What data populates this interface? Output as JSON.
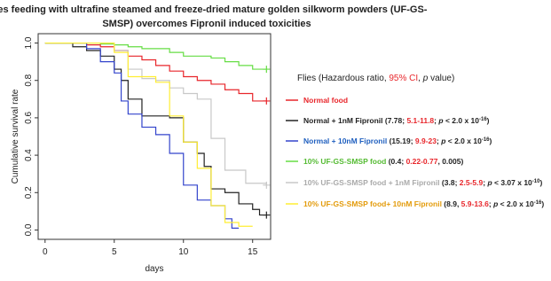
{
  "chart_data": {
    "type": "step",
    "title": [
      "Files feeding with ultrafine steamed and freeze-dried mature golden silkworm powders (UF-GS-",
      "SMSP) overcomes Fipronil induced toxicities"
    ],
    "xlabel": "days",
    "ylabel": "Cumulative survival rate",
    "xlim": [
      -0.5,
      16.3
    ],
    "xticks": [
      0,
      5,
      10,
      15
    ],
    "ylim": [
      -0.05,
      1.05
    ],
    "yticks": [
      {
        "value": 0,
        "label": "0.0"
      },
      0.2,
      0.4,
      0.6,
      0.8,
      {
        "value": 1,
        "label": "1.0"
      }
    ],
    "legend_title": [
      {
        "text": "Flies (Hazardous ratio, "
      },
      {
        "text": "95% CI",
        "color": "#e8262b"
      },
      {
        "text": ", "
      },
      {
        "text": "p",
        "italic": true
      },
      {
        "text": " value)"
      }
    ],
    "series": [
      {
        "name": "Normal food",
        "color": "#e8262b",
        "label_color": "#e8262b",
        "censored": true,
        "stats": [],
        "x": [
          0,
          3,
          4,
          5,
          6,
          7,
          8,
          9,
          10,
          11,
          12,
          13,
          14,
          15,
          16
        ],
        "values": [
          1,
          0.99,
          0.98,
          0.96,
          0.93,
          0.91,
          0.88,
          0.85,
          0.82,
          0.8,
          0.78,
          0.75,
          0.73,
          0.69,
          0.69
        ]
      },
      {
        "name": "Normal + 1nM Fipronil",
        "color": "#222222",
        "label_color": "#222222",
        "censored": true,
        "stats": [
          {
            "text": " (7.78; "
          },
          {
            "text": "5.1-11.8",
            "color": "#e8262b"
          },
          {
            "text": "; "
          },
          {
            "text": "p",
            "italic": true
          },
          {
            "text": " < 2.0 x 10"
          },
          {
            "text": "-16",
            "super": true
          },
          {
            "text": ")"
          }
        ],
        "x": [
          0,
          2,
          3,
          4,
          5,
          5.5,
          6,
          7,
          9,
          10,
          11,
          11.5,
          12,
          13,
          14,
          15,
          15.5,
          16
        ],
        "values": [
          1,
          0.98,
          0.96,
          0.93,
          0.86,
          0.8,
          0.7,
          0.61,
          0.6,
          0.47,
          0.41,
          0.34,
          0.22,
          0.2,
          0.14,
          0.11,
          0.08,
          0.08
        ]
      },
      {
        "name": "Normal + 10nM Fipronil",
        "color": "#3344cc",
        "label_color": "#1f5fbf",
        "censored": false,
        "stats": [
          {
            "text": " (15.19; "
          },
          {
            "text": "9.9-23",
            "color": "#e8262b"
          },
          {
            "text": "; "
          },
          {
            "text": "p",
            "italic": true
          },
          {
            "text": " < 2.0 x 10"
          },
          {
            "text": "-16",
            "super": true
          },
          {
            "text": ")"
          }
        ],
        "x": [
          0,
          3,
          4,
          5,
          5.5,
          6,
          7,
          8,
          9,
          10,
          11,
          12,
          13,
          13.5,
          14
        ],
        "values": [
          1,
          0.97,
          0.9,
          0.84,
          0.69,
          0.62,
          0.55,
          0.51,
          0.41,
          0.24,
          0.16,
          0.13,
          0.06,
          0.01,
          0.01
        ]
      },
      {
        "name": "10% UF-GS-SMSP food",
        "color": "#66dd44",
        "label_color": "#55bb33",
        "censored": true,
        "stats": [
          {
            "text": " (0.4; "
          },
          {
            "text": "0.22-0.77",
            "color": "#e8262b"
          },
          {
            "text": ", 0.005)"
          }
        ],
        "x": [
          0,
          4,
          5,
          6,
          7,
          9,
          10,
          12,
          13,
          14,
          15,
          16
        ],
        "values": [
          1,
          0.995,
          0.99,
          0.98,
          0.97,
          0.95,
          0.93,
          0.92,
          0.9,
          0.88,
          0.86,
          0.86
        ]
      },
      {
        "name": "10% UF-GS-SMSP food + 1nM Fipronil",
        "color": "#c8c8c8",
        "label_color": "#aaaaaa",
        "censored": true,
        "stats": [
          {
            "text": " (3.8; "
          },
          {
            "text": "2.5-5.9",
            "color": "#e8262b"
          },
          {
            "text": "; "
          },
          {
            "text": "p",
            "italic": true
          },
          {
            "text": " < 3.07 x 10"
          },
          {
            "text": "-10",
            "super": true
          },
          {
            "text": ")"
          }
        ],
        "x": [
          0,
          5,
          6,
          7,
          8,
          9,
          10,
          11,
          12,
          13,
          14.5,
          16
        ],
        "values": [
          1,
          0.96,
          0.86,
          0.81,
          0.8,
          0.76,
          0.73,
          0.7,
          0.49,
          0.32,
          0.25,
          0.24
        ]
      },
      {
        "name": "10% UF-GS-SMSP food+ 10nM Fipronil",
        "color": "#ffee33",
        "label_color": "#e39b0b",
        "censored": false,
        "stats": [
          {
            "text": " (8.9, "
          },
          {
            "text": "5.9-13.6",
            "color": "#e8262b"
          },
          {
            "text": "; "
          },
          {
            "text": "p",
            "italic": true
          },
          {
            "text": " < 2.0 x 10"
          },
          {
            "text": "-16",
            "super": true
          },
          {
            "text": ")"
          }
        ],
        "x": [
          0,
          5,
          6,
          8,
          9,
          10,
          11,
          12,
          13,
          14,
          15
        ],
        "values": [
          1,
          0.95,
          0.82,
          0.79,
          0.61,
          0.47,
          0.33,
          0.13,
          0.04,
          0.02,
          0.02
        ]
      }
    ]
  }
}
